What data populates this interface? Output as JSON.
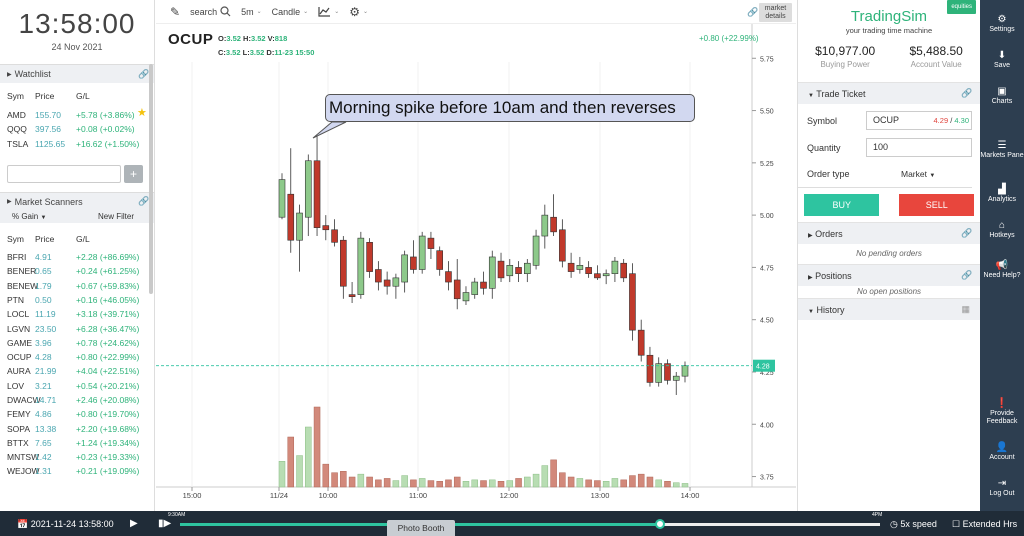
{
  "clock": {
    "time": "13:58:00",
    "date": "24 Nov 2021"
  },
  "watchlist": {
    "title": "Watchlist",
    "columns": [
      "Sym",
      "Price",
      "G/L"
    ],
    "rows": [
      {
        "sym": "AMD",
        "price": "155.70",
        "gl": "+5.78 (+3.86%)"
      },
      {
        "sym": "QQQ",
        "price": "397.56",
        "gl": "+0.08 (+0.02%)"
      },
      {
        "sym": "TSLA",
        "price": "1125.65",
        "gl": "+16.62 (+1.50%)"
      }
    ],
    "add_button": "+"
  },
  "scanners": {
    "title": "Market Scanners",
    "sort": "% Gain",
    "new_filter": "New Filter",
    "columns": [
      "Sym",
      "Price",
      "G/L"
    ],
    "rows": [
      {
        "sym": "BFRI",
        "price": "4.91",
        "gl": "+2.28 (+86.69%)"
      },
      {
        "sym": "BENER",
        "price": "0.65",
        "gl": "+0.24 (+61.25%)"
      },
      {
        "sym": "BENEW",
        "price": "1.79",
        "gl": "+0.67 (+59.83%)"
      },
      {
        "sym": "PTN",
        "price": "0.50",
        "gl": "+0.16 (+46.05%)"
      },
      {
        "sym": "LOCL",
        "price": "11.19",
        "gl": "+3.18 (+39.71%)"
      },
      {
        "sym": "LGVN",
        "price": "23.50",
        "gl": "+6.28 (+36.47%)"
      },
      {
        "sym": "GAME",
        "price": "3.96",
        "gl": "+0.78 (+24.62%)"
      },
      {
        "sym": "OCUP",
        "price": "4.28",
        "gl": "+0.80 (+22.99%)"
      },
      {
        "sym": "AURA",
        "price": "21.99",
        "gl": "+4.04 (+22.51%)"
      },
      {
        "sym": "LOV",
        "price": "3.21",
        "gl": "+0.54 (+20.21%)"
      },
      {
        "sym": "DWACW",
        "price": "14.71",
        "gl": "+2.46 (+20.08%)"
      },
      {
        "sym": "FEMY",
        "price": "4.86",
        "gl": "+0.80 (+19.70%)"
      },
      {
        "sym": "SOPA",
        "price": "13.38",
        "gl": "+2.20 (+19.68%)"
      },
      {
        "sym": "BTTX",
        "price": "7.65",
        "gl": "+1.24 (+19.34%)"
      },
      {
        "sym": "MNTSW",
        "price": "1.42",
        "gl": "+0.23 (+19.33%)"
      },
      {
        "sym": "WEJOW",
        "price": "1.31",
        "gl": "+0.21 (+19.09%)"
      }
    ]
  },
  "toolbar": {
    "search": "search",
    "interval": "5m",
    "chart_type": "Candle",
    "market_details": "market details"
  },
  "chart_header": {
    "symbol": "OCUP",
    "o_label": "O:",
    "o": "3.52",
    "h_label": "H:",
    "h": "3.52",
    "v_label": "V:",
    "v": "818",
    "c_label": "C:",
    "c": "3.52",
    "l_label": "L:",
    "l": "3.52",
    "d_label": "D:",
    "d": "11-23 15:50",
    "change": "+0.80 (+22.99%)",
    "callout": "Morning spike before 10am and then reverses"
  },
  "chart_data": {
    "type": "candlestick",
    "y_ticks": [
      "5.75",
      "5.50",
      "5.25",
      "5.00",
      "4.75",
      "4.50",
      "4.25",
      "4.00",
      "3.75"
    ],
    "ylim": [
      3.7,
      5.78
    ],
    "x_ticks": [
      "15:00",
      "11/24",
      "10:00",
      "11:00",
      "12:00",
      "13:00",
      "14:00"
    ],
    "last_price": "4.28",
    "up_color": "#8dc98a",
    "down_color": "#c0392b",
    "candles": [
      {
        "o": 4.99,
        "h": 5.2,
        "l": 4.98,
        "c": 5.17
      },
      {
        "o": 5.1,
        "h": 5.32,
        "l": 4.82,
        "c": 4.88
      },
      {
        "o": 4.88,
        "h": 5.05,
        "l": 4.73,
        "c": 5.01
      },
      {
        "o": 4.99,
        "h": 5.29,
        "l": 4.9,
        "c": 5.26
      },
      {
        "o": 5.26,
        "h": 5.38,
        "l": 4.9,
        "c": 4.94
      },
      {
        "o": 4.95,
        "h": 5.0,
        "l": 4.88,
        "c": 4.93
      },
      {
        "o": 4.93,
        "h": 4.98,
        "l": 4.85,
        "c": 4.87
      },
      {
        "o": 4.88,
        "h": 4.9,
        "l": 4.6,
        "c": 4.66
      },
      {
        "o": 4.62,
        "h": 4.68,
        "l": 4.58,
        "c": 4.61
      },
      {
        "o": 4.62,
        "h": 4.92,
        "l": 4.6,
        "c": 4.89
      },
      {
        "o": 4.87,
        "h": 4.89,
        "l": 4.7,
        "c": 4.73
      },
      {
        "o": 4.74,
        "h": 4.78,
        "l": 4.64,
        "c": 4.68
      },
      {
        "o": 4.69,
        "h": 4.73,
        "l": 4.62,
        "c": 4.66
      },
      {
        "o": 4.66,
        "h": 4.72,
        "l": 4.6,
        "c": 4.7
      },
      {
        "o": 4.68,
        "h": 4.83,
        "l": 4.63,
        "c": 4.81
      },
      {
        "o": 4.8,
        "h": 4.88,
        "l": 4.72,
        "c": 4.74
      },
      {
        "o": 4.74,
        "h": 4.92,
        "l": 4.72,
        "c": 4.9
      },
      {
        "o": 4.89,
        "h": 4.92,
        "l": 4.79,
        "c": 4.84
      },
      {
        "o": 4.83,
        "h": 4.85,
        "l": 4.71,
        "c": 4.74
      },
      {
        "o": 4.73,
        "h": 4.78,
        "l": 4.64,
        "c": 4.68
      },
      {
        "o": 4.69,
        "h": 4.79,
        "l": 4.55,
        "c": 4.6
      },
      {
        "o": 4.59,
        "h": 4.66,
        "l": 4.57,
        "c": 4.63
      },
      {
        "o": 4.62,
        "h": 4.7,
        "l": 4.6,
        "c": 4.68
      },
      {
        "o": 4.68,
        "h": 4.73,
        "l": 4.62,
        "c": 4.65
      },
      {
        "o": 4.65,
        "h": 4.83,
        "l": 4.6,
        "c": 4.8
      },
      {
        "o": 4.78,
        "h": 4.82,
        "l": 4.68,
        "c": 4.7
      },
      {
        "o": 4.71,
        "h": 4.79,
        "l": 4.68,
        "c": 4.76
      },
      {
        "o": 4.75,
        "h": 4.78,
        "l": 4.68,
        "c": 4.72
      },
      {
        "o": 4.72,
        "h": 4.79,
        "l": 4.68,
        "c": 4.77
      },
      {
        "o": 4.76,
        "h": 4.93,
        "l": 4.74,
        "c": 4.9
      },
      {
        "o": 4.9,
        "h": 5.05,
        "l": 4.84,
        "c": 5.0
      },
      {
        "o": 4.99,
        "h": 5.1,
        "l": 4.9,
        "c": 4.92
      },
      {
        "o": 4.93,
        "h": 4.98,
        "l": 4.75,
        "c": 4.78
      },
      {
        "o": 4.77,
        "h": 4.82,
        "l": 4.7,
        "c": 4.73
      },
      {
        "o": 4.74,
        "h": 4.8,
        "l": 4.72,
        "c": 4.76
      },
      {
        "o": 4.75,
        "h": 4.78,
        "l": 4.7,
        "c": 4.72
      },
      {
        "o": 4.72,
        "h": 4.76,
        "l": 4.69,
        "c": 4.7
      },
      {
        "o": 4.71,
        "h": 4.74,
        "l": 4.67,
        "c": 4.72
      },
      {
        "o": 4.72,
        "h": 4.8,
        "l": 4.68,
        "c": 4.78
      },
      {
        "o": 4.77,
        "h": 4.79,
        "l": 4.68,
        "c": 4.7
      },
      {
        "o": 4.72,
        "h": 4.77,
        "l": 4.4,
        "c": 4.45
      },
      {
        "o": 4.45,
        "h": 4.5,
        "l": 4.3,
        "c": 4.33
      },
      {
        "o": 4.33,
        "h": 4.37,
        "l": 4.18,
        "c": 4.2
      },
      {
        "o": 4.2,
        "h": 4.32,
        "l": 4.18,
        "c": 4.29
      },
      {
        "o": 4.29,
        "h": 4.31,
        "l": 4.19,
        "c": 4.21
      },
      {
        "o": 4.21,
        "h": 4.25,
        "l": 4.14,
        "c": 4.23
      },
      {
        "o": 4.23,
        "h": 4.3,
        "l": 4.2,
        "c": 4.28
      }
    ],
    "volume": [
      36,
      70,
      44,
      84,
      112,
      32,
      20,
      22,
      14,
      18,
      14,
      10,
      12,
      9,
      16,
      10,
      12,
      9,
      8,
      10,
      14,
      8,
      10,
      9,
      10,
      8,
      9,
      12,
      14,
      18,
      30,
      38,
      20,
      14,
      12,
      10,
      9,
      8,
      12,
      10,
      16,
      18,
      14,
      10,
      8,
      6,
      5
    ]
  },
  "brand": {
    "name": "TradingSim",
    "tagline": "your trading time machine",
    "badge": "equities"
  },
  "account": {
    "buying_power_value": "$10,977.00",
    "buying_power_label": "Buying Power",
    "account_value": "$5,488.50",
    "account_value_label": "Account Value"
  },
  "trade_ticket": {
    "title": "Trade Ticket",
    "symbol_label": "Symbol",
    "symbol": "OCUP",
    "bid": "4.29",
    "ask": "4.30",
    "quantity_label": "Quantity",
    "quantity": "100",
    "order_type_label": "Order type",
    "order_type": "Market",
    "buy": "BUY",
    "sell": "SELL"
  },
  "orders": {
    "title": "Orders",
    "empty": "No pending orders"
  },
  "positions": {
    "title": "Positions",
    "empty": "No open positions"
  },
  "history": {
    "title": "History"
  },
  "nav": [
    {
      "label": "Settings",
      "icon": "gear-icon"
    },
    {
      "label": "Save",
      "icon": "download-icon"
    },
    {
      "label": "Charts",
      "icon": "chart-icon"
    },
    {
      "label": "Markets Pane",
      "icon": "list-icon"
    },
    {
      "label": "Analytics",
      "icon": "bar-chart-icon"
    },
    {
      "label": "Hotkeys",
      "icon": "graduation-cap-icon"
    },
    {
      "label": "Need Help?",
      "icon": "megaphone-icon"
    },
    {
      "label": "Provide Feedback",
      "icon": "exclamation-icon"
    },
    {
      "label": "Account",
      "icon": "user-icon"
    },
    {
      "label": "Log Out",
      "icon": "logout-icon"
    }
  ],
  "playback": {
    "datetime": "2021-11-24   13:58:00",
    "start_label": "9:30AM",
    "end_label": "4PM",
    "photo_booth": "Photo Booth",
    "speed": "5x speed",
    "extended": "Extended Hrs",
    "progress": 0.684
  }
}
